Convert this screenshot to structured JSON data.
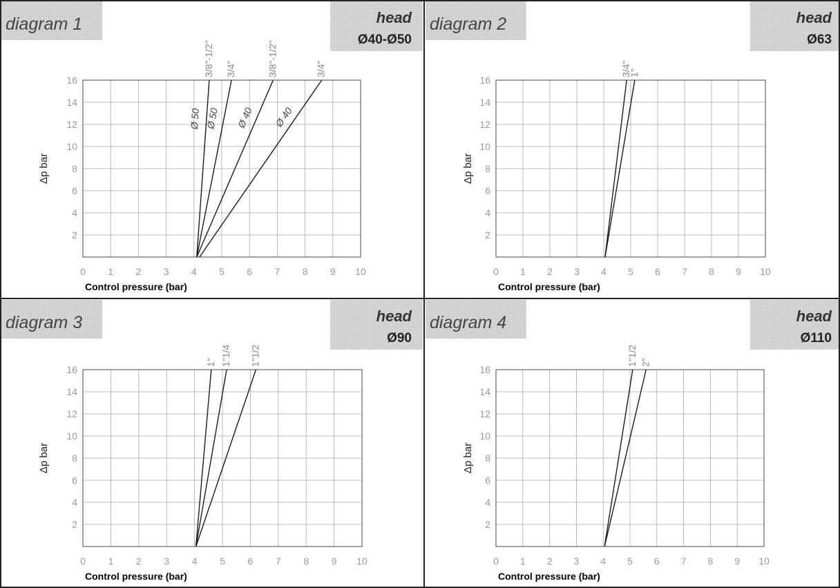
{
  "chart_data": [
    {
      "type": "line",
      "title": "diagram 1",
      "head_word": "head",
      "head_size": "Ø40-Ø50",
      "xlabel": "Control pressure (bar)",
      "ylabel": "Δp bar",
      "xlim": [
        0,
        10
      ],
      "ylim": [
        0,
        16
      ],
      "x_ticks": [
        "0",
        "1",
        "2",
        "3",
        "4",
        "5",
        "6",
        "7",
        "8",
        "9",
        "10"
      ],
      "y_ticks": [
        "2",
        "4",
        "6",
        "8",
        "10",
        "12",
        "14",
        "16"
      ],
      "series": [
        {
          "name": "3/8\"-1/2\"",
          "inline": "Ø 50",
          "x": [
            4.1,
            4.55
          ],
          "y": [
            0,
            16
          ]
        },
        {
          "name": "3/4\"",
          "inline": "Ø 50",
          "x": [
            4.1,
            5.35
          ],
          "y": [
            0,
            16
          ]
        },
        {
          "name": "3/8\"-1/2\"",
          "inline": "Ø 40",
          "x": [
            4.1,
            6.85
          ],
          "y": [
            0,
            16
          ]
        },
        {
          "name": "3/4\"",
          "inline": "Ø 40",
          "x": [
            4.2,
            8.6
          ],
          "y": [
            0,
            16
          ]
        }
      ]
    },
    {
      "type": "line",
      "title": "diagram 2",
      "head_word": "head",
      "head_size": "Ø63",
      "xlabel": "Control pressure (bar)",
      "ylabel": "Δp bar",
      "xlim": [
        0,
        10
      ],
      "ylim": [
        0,
        16
      ],
      "x_ticks": [
        "0",
        "1",
        "2",
        "3",
        "4",
        "5",
        "6",
        "7",
        "8",
        "9",
        "10"
      ],
      "y_ticks": [
        "2",
        "4",
        "6",
        "8",
        "10",
        "12",
        "14",
        "16"
      ],
      "series": [
        {
          "name": "3/4\"",
          "x": [
            4.05,
            4.85
          ],
          "y": [
            0,
            16
          ]
        },
        {
          "name": "1\"",
          "x": [
            4.05,
            5.15
          ],
          "y": [
            0,
            16
          ]
        }
      ]
    },
    {
      "type": "line",
      "title": "diagram 3",
      "head_word": "head",
      "head_size": "Ø90",
      "xlabel": "Control pressure (bar)",
      "ylabel": "Δp bar",
      "xlim": [
        0,
        10
      ],
      "ylim": [
        0,
        16
      ],
      "x_ticks": [
        "0",
        "1",
        "2",
        "3",
        "4",
        "5",
        "6",
        "7",
        "8",
        "9",
        "10"
      ],
      "y_ticks": [
        "2",
        "4",
        "6",
        "8",
        "10",
        "12",
        "14",
        "16"
      ],
      "series": [
        {
          "name": "1\"",
          "x": [
            4.05,
            4.6
          ],
          "y": [
            0,
            16
          ]
        },
        {
          "name": "1\"1/4",
          "x": [
            4.05,
            5.15
          ],
          "y": [
            0,
            16
          ]
        },
        {
          "name": "1\"1/2",
          "x": [
            4.05,
            6.2
          ],
          "y": [
            0,
            16
          ]
        }
      ]
    },
    {
      "type": "line",
      "title": "diagram 4",
      "head_word": "head",
      "head_size": "Ø110",
      "xlabel": "Control pressure (bar)",
      "ylabel": "Δp bar",
      "xlim": [
        0,
        10
      ],
      "ylim": [
        0,
        16
      ],
      "x_ticks": [
        "0",
        "1",
        "2",
        "3",
        "4",
        "5",
        "6",
        "7",
        "8",
        "9",
        "10"
      ],
      "y_ticks": [
        "2",
        "4",
        "6",
        "8",
        "10",
        "12",
        "14",
        "16"
      ],
      "series": [
        {
          "name": "1\"1/2",
          "x": [
            4.05,
            5.1
          ],
          "y": [
            0,
            16
          ]
        },
        {
          "name": "2\"",
          "x": [
            4.05,
            5.6
          ],
          "y": [
            0,
            16
          ]
        }
      ]
    }
  ]
}
